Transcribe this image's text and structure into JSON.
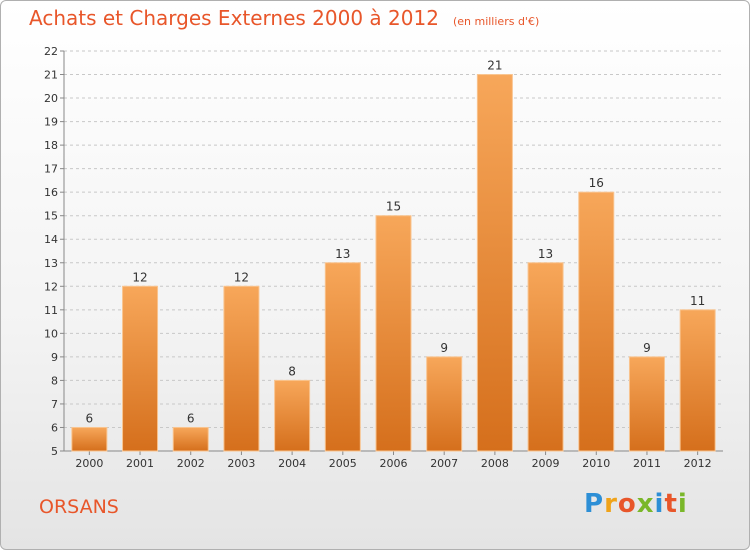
{
  "header": {
    "title": "Achats et Charges Externes 2000 à 2012",
    "unit": "(en milliers d'€)"
  },
  "footer": {
    "place": "ORSANS",
    "brand_letters": [
      "P",
      "r",
      "o",
      "x",
      "i",
      "t",
      "i"
    ]
  },
  "colors": {
    "accent": "#e8562a",
    "bar_top": "#f7a75a",
    "bar_bottom": "#d56f1c"
  },
  "chart_data": {
    "type": "bar",
    "title": "Achats et Charges Externes 2000 à 2012",
    "subtitle": "(en milliers d'€)",
    "categories": [
      "2000",
      "2001",
      "2002",
      "2003",
      "2004",
      "2005",
      "2006",
      "2007",
      "2008",
      "2009",
      "2010",
      "2011",
      "2012"
    ],
    "values": [
      6,
      12,
      6,
      12,
      8,
      13,
      15,
      9,
      21,
      13,
      16,
      9,
      11
    ],
    "xlabel": "",
    "ylabel": "",
    "ylim": [
      5,
      22
    ],
    "yticks": [
      5,
      6,
      7,
      8,
      9,
      10,
      11,
      12,
      13,
      14,
      15,
      16,
      17,
      18,
      19,
      20,
      21,
      22
    ],
    "grid": true,
    "legend": "none"
  }
}
